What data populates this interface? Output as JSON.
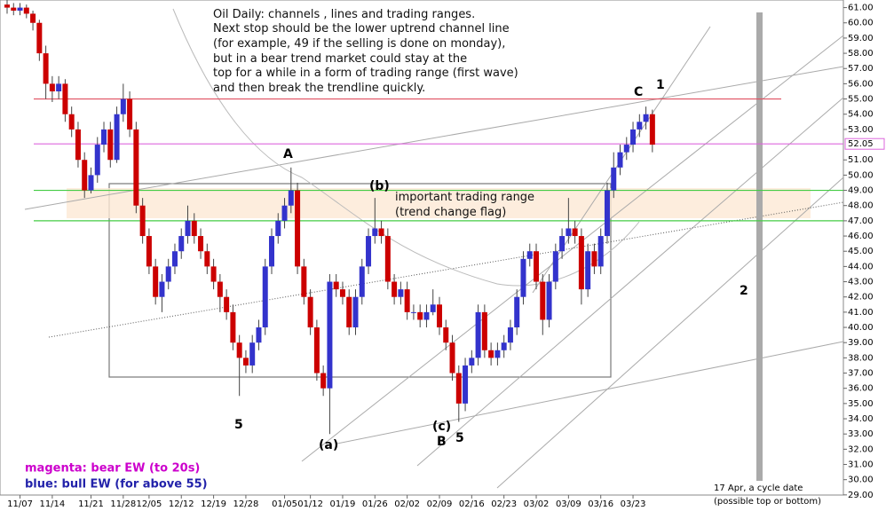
{
  "chart_data": {
    "type": "candlestick",
    "ohlc": [
      [
        61.2,
        61.6,
        60.6,
        61
      ],
      [
        61,
        61.3,
        60.5,
        60.8
      ],
      [
        60.8,
        61.3,
        60.5,
        61
      ],
      [
        61,
        61.2,
        60.3,
        60.6
      ],
      [
        60.6,
        60.8,
        59.5,
        60
      ],
      [
        60,
        60.2,
        57.5,
        58
      ],
      [
        58,
        58.5,
        55,
        56
      ],
      [
        56,
        56.5,
        54.8,
        55.5
      ],
      [
        55.5,
        56.5,
        55,
        56
      ],
      [
        56,
        56.3,
        53.5,
        54
      ],
      [
        54,
        54.5,
        52.5,
        53
      ],
      [
        53,
        53.5,
        50.5,
        51
      ],
      [
        51,
        51.5,
        48.5,
        49
      ],
      [
        49,
        50.5,
        48.8,
        50
      ],
      [
        50,
        52.5,
        49.5,
        52
      ],
      [
        52,
        53.5,
        51.5,
        53
      ],
      [
        53,
        53.5,
        50.5,
        51
      ],
      [
        51,
        54.5,
        50.8,
        54
      ],
      [
        54,
        56,
        53.5,
        55
      ],
      [
        55,
        55.5,
        52.5,
        53
      ],
      [
        53,
        53.5,
        47.5,
        48
      ],
      [
        48,
        48.5,
        45.5,
        46
      ],
      [
        46,
        46.5,
        43.5,
        44
      ],
      [
        44,
        44.5,
        41.5,
        42
      ],
      [
        42,
        43.5,
        41,
        43
      ],
      [
        43,
        44.5,
        42.5,
        44
      ],
      [
        44,
        45.5,
        43.5,
        45
      ],
      [
        45,
        46.5,
        44.5,
        46
      ],
      [
        46,
        48,
        45.5,
        47
      ],
      [
        47,
        47.5,
        45.5,
        46
      ],
      [
        46,
        46.5,
        44.5,
        45
      ],
      [
        45,
        45.5,
        43.5,
        44
      ],
      [
        44,
        44.5,
        42.5,
        43
      ],
      [
        43,
        43.5,
        41,
        42
      ],
      [
        42,
        42.5,
        40.5,
        41
      ],
      [
        41,
        41.5,
        38.5,
        39
      ],
      [
        39,
        39.5,
        35.5,
        38
      ],
      [
        38,
        38.5,
        37,
        37.5
      ],
      [
        37.5,
        39.5,
        37,
        39
      ],
      [
        39,
        40.5,
        38.5,
        40
      ],
      [
        40,
        44.5,
        39.5,
        44
      ],
      [
        44,
        46.5,
        43.5,
        46
      ],
      [
        46,
        47.5,
        45.5,
        47
      ],
      [
        47,
        48.5,
        46.5,
        48
      ],
      [
        48,
        50.5,
        47.5,
        49
      ],
      [
        49,
        49.5,
        43.5,
        44
      ],
      [
        44,
        44.5,
        41.5,
        42
      ],
      [
        42,
        42.5,
        39.5,
        40
      ],
      [
        40,
        40.5,
        36.5,
        37
      ],
      [
        37,
        37.5,
        35.5,
        36
      ],
      [
        36,
        43.5,
        33,
        43
      ],
      [
        43,
        43.5,
        42,
        42.5
      ],
      [
        42.5,
        43,
        41.5,
        42
      ],
      [
        42,
        42.5,
        39.5,
        40
      ],
      [
        40,
        42.5,
        39.5,
        42
      ],
      [
        42,
        44.5,
        41.5,
        44
      ],
      [
        44,
        46.5,
        43.5,
        46
      ],
      [
        46,
        48.5,
        45.5,
        46.5
      ],
      [
        46.5,
        47,
        45.5,
        46
      ],
      [
        46,
        46.5,
        42.5,
        43
      ],
      [
        43,
        43.5,
        41.5,
        42
      ],
      [
        42,
        43,
        41.5,
        42.5
      ],
      [
        42.5,
        43,
        40.5,
        41
      ],
      [
        41,
        41.5,
        40.5,
        41
      ],
      [
        41,
        41.5,
        40,
        40.5
      ],
      [
        40.5,
        41.5,
        40,
        41
      ],
      [
        41,
        42.5,
        40.8,
        41.5
      ],
      [
        41.5,
        42,
        39.5,
        40
      ],
      [
        40,
        40.5,
        38.5,
        39
      ],
      [
        39,
        39.5,
        36.5,
        37
      ],
      [
        37,
        37.5,
        33.8,
        35
      ],
      [
        35,
        38,
        34.5,
        37.5
      ],
      [
        37.5,
        38.5,
        37,
        38
      ],
      [
        38,
        41.5,
        37.5,
        41
      ],
      [
        41,
        41.5,
        38,
        38.5
      ],
      [
        38.5,
        39,
        37.5,
        38
      ],
      [
        38,
        39,
        37.5,
        38.5
      ],
      [
        38.5,
        39.5,
        38,
        39
      ],
      [
        39,
        40.5,
        38.5,
        40
      ],
      [
        40,
        42.5,
        39.5,
        42
      ],
      [
        42,
        45,
        41.5,
        44.5
      ],
      [
        44.5,
        45.5,
        44,
        45
      ],
      [
        45,
        45.5,
        42.5,
        43
      ],
      [
        43,
        43.5,
        39.5,
        40.5
      ],
      [
        40.5,
        43.5,
        40,
        43
      ],
      [
        43,
        45.5,
        42.5,
        45
      ],
      [
        45,
        46.5,
        44.5,
        46
      ],
      [
        46,
        48.5,
        45.5,
        46.5
      ],
      [
        46.5,
        47,
        45.5,
        46
      ],
      [
        46,
        46.5,
        41.5,
        42.5
      ],
      [
        42.5,
        45.5,
        42,
        45
      ],
      [
        45,
        45.5,
        43.5,
        44
      ],
      [
        44,
        46.5,
        43.5,
        46
      ],
      [
        46,
        49.5,
        45.5,
        49
      ],
      [
        49,
        51.5,
        48.5,
        50.5
      ],
      [
        50.5,
        52,
        50,
        51.5
      ],
      [
        51.5,
        52.5,
        51,
        52
      ],
      [
        52,
        53.5,
        51.5,
        53
      ],
      [
        53,
        54,
        52.5,
        53.5
      ],
      [
        53.5,
        54.5,
        53,
        54
      ],
      [
        54,
        54.3,
        51.5,
        52
      ]
    ],
    "up_color": "#3333cc",
    "down_color": "#cc0000",
    "xlim": [
      -1.1,
      129.6
    ],
    "xticks": [
      {
        "value": 2,
        "label": "11/07"
      },
      {
        "value": 7,
        "label": "11/14"
      },
      {
        "value": 13,
        "label": "11/21"
      },
      {
        "value": 18,
        "label": "11/28"
      },
      {
        "value": 22,
        "label": "12/05"
      },
      {
        "value": 27,
        "label": "12/12"
      },
      {
        "value": 32,
        "label": "12/19"
      },
      {
        "value": 37,
        "label": "12/28"
      },
      {
        "value": 43,
        "label": "01/05"
      },
      {
        "value": 47,
        "label": "01/12"
      },
      {
        "value": 52,
        "label": "01/19"
      },
      {
        "value": 57,
        "label": "01/26"
      },
      {
        "value": 62,
        "label": "02/02"
      },
      {
        "value": 67,
        "label": "02/09"
      },
      {
        "value": 72,
        "label": "02/16"
      },
      {
        "value": 77,
        "label": "02/23"
      },
      {
        "value": 82,
        "label": "03/02"
      },
      {
        "value": 87,
        "label": "03/09"
      },
      {
        "value": 92,
        "label": "03/16"
      },
      {
        "value": 97,
        "label": "03/23"
      }
    ],
    "ylim": [
      28.7,
      61.5
    ],
    "yticks": [
      {
        "value": 29,
        "label": "29.00"
      },
      {
        "value": 30,
        "label": "30.00"
      },
      {
        "value": 31,
        "label": "31.00"
      },
      {
        "value": 32,
        "label": "32.00"
      },
      {
        "value": 33,
        "label": "33.00"
      },
      {
        "value": 34,
        "label": "34.00"
      },
      {
        "value": 35,
        "label": "35.00"
      },
      {
        "value": 36,
        "label": "36.00"
      },
      {
        "value": 37,
        "label": "37.00"
      },
      {
        "value": 38,
        "label": "38.00"
      },
      {
        "value": 39,
        "label": "39.00"
      },
      {
        "value": 40,
        "label": "40.00"
      },
      {
        "value": 41,
        "label": "41.00"
      },
      {
        "value": 42,
        "label": "42.00"
      },
      {
        "value": 43,
        "label": "43.00"
      },
      {
        "value": 44,
        "label": "44.00"
      },
      {
        "value": 45,
        "label": "45.00"
      },
      {
        "value": 46,
        "label": "46.00"
      },
      {
        "value": 47,
        "label": "47.00"
      },
      {
        "value": 48,
        "label": "48.00"
      },
      {
        "value": 49,
        "label": "49.00"
      },
      {
        "value": 50,
        "label": "50.00"
      },
      {
        "value": 51,
        "label": "51.00"
      },
      {
        "value": 53,
        "label": "53.00"
      },
      {
        "value": 54,
        "label": "54.00"
      },
      {
        "value": 55,
        "label": "55.00"
      },
      {
        "value": 56,
        "label": "56.00"
      },
      {
        "value": 57,
        "label": "57.00"
      },
      {
        "value": 58,
        "label": "58.00"
      },
      {
        "value": 59,
        "label": "59.00"
      },
      {
        "value": 60,
        "label": "60.00"
      },
      {
        "value": 61,
        "label": "61.00"
      }
    ],
    "last_price": {
      "value": 52.05,
      "label": "52.05"
    },
    "hlines": [
      {
        "value": 55,
        "color": "#e05060"
      },
      {
        "value": 52.05,
        "color": "#dd66dd"
      },
      {
        "value": 49,
        "color": "#44cc44"
      },
      {
        "value": 47,
        "color": "#44cc44"
      }
    ],
    "note_lines": [
      "Oil Daily: channels , lines and trading ranges.",
      "Next stop should be the lower uptrend channel line",
      "(for example, 49 if the selling is done on monday),",
      "but in a bear trend market could stay at the",
      "top for a while in a form of trading range (first wave)",
      "and then break  the trendline quickly."
    ],
    "range_note": [
      "important trading range",
      "(trend change flag)"
    ],
    "wave_labels": [
      "A",
      "(b)",
      "C",
      "1",
      "2",
      "5",
      "(a)",
      "(c)",
      "B",
      "5"
    ],
    "legend": [
      "magenta: bear EW (to 20s)",
      "blue: bull EW (for above 55)"
    ],
    "cycle_note": [
      "17 Apr, a cycle date",
      "(possible top or bottom)"
    ]
  }
}
